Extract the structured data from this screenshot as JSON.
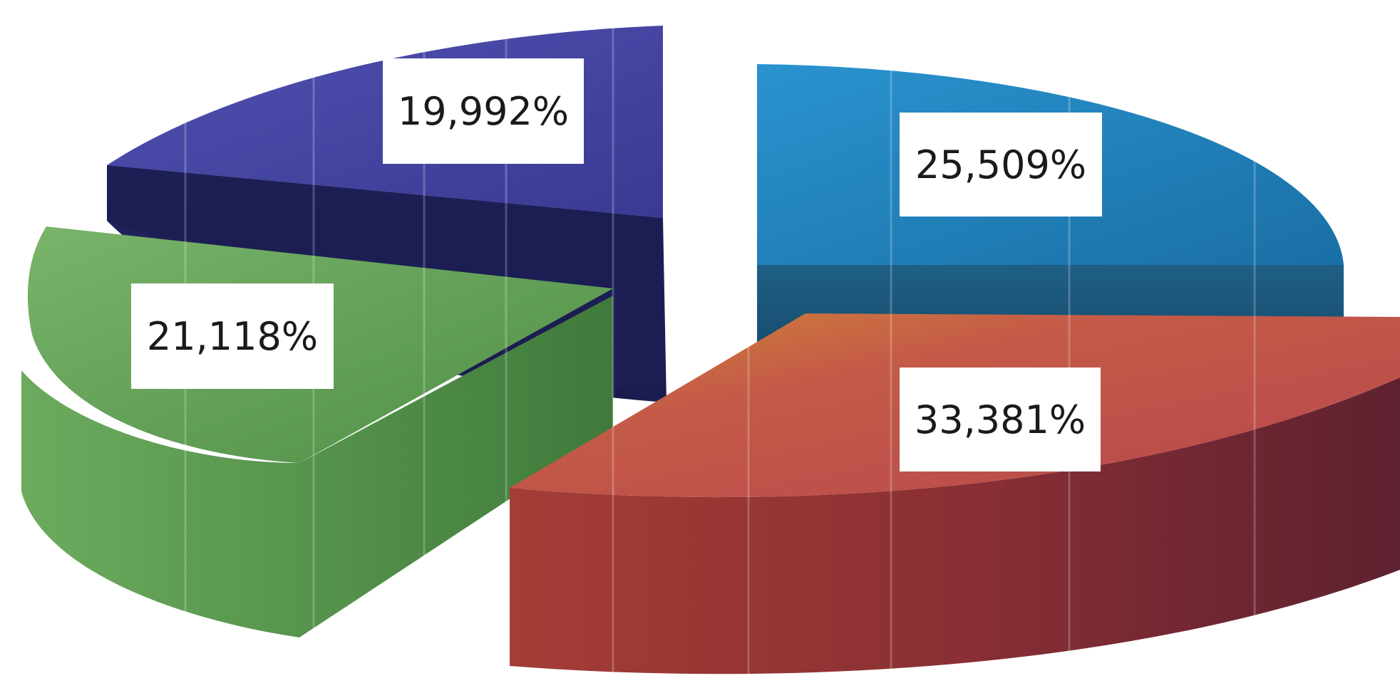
{
  "chart_data": {
    "type": "pie",
    "title": "",
    "slices": [
      {
        "label": "19,992%",
        "value": 19.992,
        "color": "#3f3f9a"
      },
      {
        "label": "25,509%",
        "value": 25.509,
        "color": "#1f7fb8"
      },
      {
        "label": "33,381%",
        "value": 33.381,
        "color": "#c0504d"
      },
      {
        "label": "21,118%",
        "value": 21.118,
        "color": "#5e9d52"
      }
    ],
    "legend": "none",
    "style": "3d-exploded"
  }
}
